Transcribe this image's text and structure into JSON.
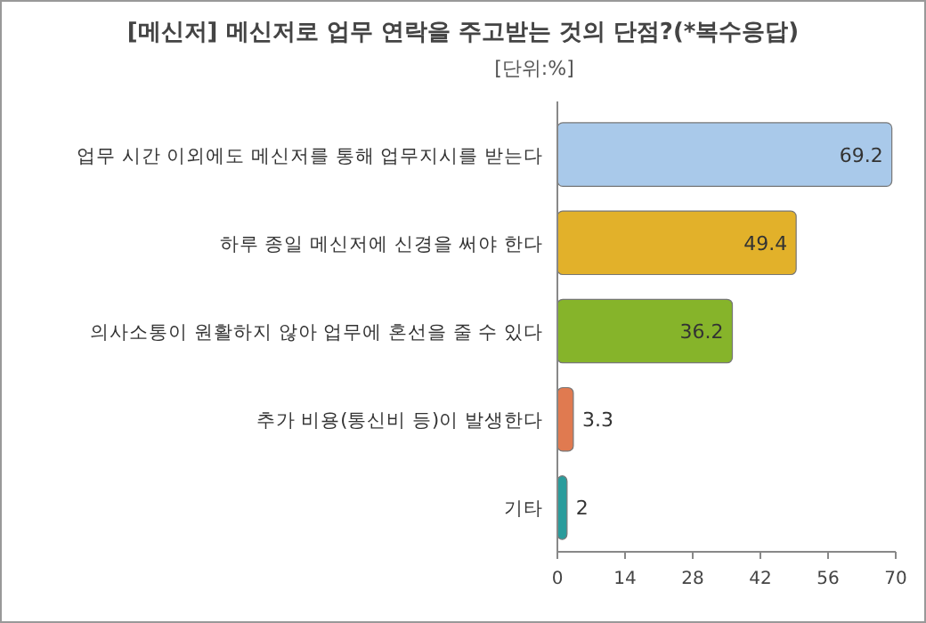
{
  "chart_data": {
    "type": "bar",
    "orientation": "horizontal",
    "title": "[메신저] 메신저로 업무 연락을 주고받는 것의 단점?(*복수응답)",
    "subtitle": "[단위:%]",
    "categories": [
      "업무 시간 이외에도 메신저를 통해 업무지시를 받는다",
      "하루 종일 메신저에 신경을 써야 한다",
      "의사소통이 원활하지 않아 업무에 혼선을 줄 수 있다",
      "추가 비용(통신비 등)이 발생한다",
      "기타"
    ],
    "values": [
      69.2,
      49.4,
      36.2,
      3.3,
      2
    ],
    "colors": [
      "#a9c9ea",
      "#e2b12a",
      "#86b42a",
      "#e07a50",
      "#2a9c9c"
    ],
    "xlim": [
      0,
      70
    ],
    "xticks": [
      0,
      14,
      28,
      42,
      56,
      70
    ],
    "data_labels": true
  }
}
